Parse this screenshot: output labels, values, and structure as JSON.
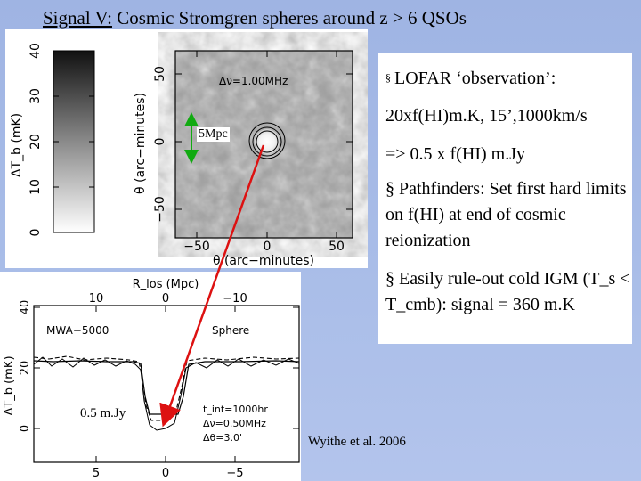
{
  "title": {
    "signal": "Signal V:",
    "rest": " Cosmic Stromgren spheres around z > 6 QSOs"
  },
  "top_figure": {
    "colorbar_ticks": [
      "0",
      "10",
      "20",
      "30",
      "40"
    ],
    "colorbar_label": "ΔT_b (mK)",
    "y_ticks": [
      "−50",
      "0",
      "50"
    ],
    "y_label": "θ (arc−minutes)",
    "x_ticks": [
      "−50",
      "0",
      "50"
    ],
    "x_label": "θ (arc−minutes)",
    "annotation": "Δν=1.00MHz"
  },
  "bottom_figure": {
    "top_axis_label": "R_los (Mpc)",
    "top_ticks": [
      "10",
      "0",
      "−10"
    ],
    "y_ticks": [
      "0",
      "20",
      "40"
    ],
    "y_label": "ΔT_b (mK)",
    "x_ticks": [
      "5",
      "0",
      "−5"
    ],
    "label_left": "MWA−5000",
    "label_right": "Sphere",
    "params": [
      "t_int=1000hr",
      "Δν=0.50MHz",
      "Δθ=3.0'"
    ]
  },
  "labels": {
    "five_mpc": "5Mpc",
    "half_mjy": "0.5 m.Jy",
    "citation": "Wyithe et al. 2006"
  },
  "textbox": {
    "b1_line1": "LOFAR ‘observation’:",
    "b1_line2": "20xf(HI)m.K, 15’,1000km/s",
    "b1_line3": "=> 0.5 x f(HI) m.Jy",
    "b2": "§ Pathfinders: Set first hard limits on f(HI) at end of cosmic reionization",
    "b3": "§ Easily rule-out cold IGM (T_s < T_cmb): signal = 360 m.K"
  },
  "colors": {
    "background": "#a9bde8",
    "arrow": "#dd1111"
  }
}
